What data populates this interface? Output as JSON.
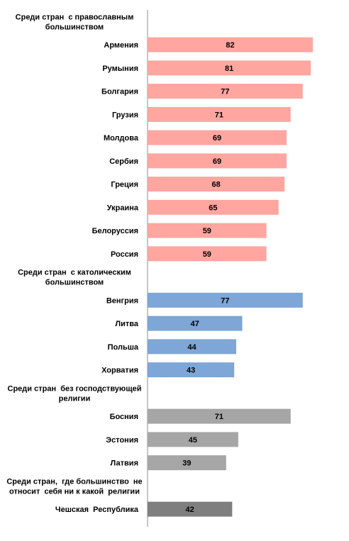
{
  "chart_data": {
    "type": "bar",
    "orientation": "horizontal",
    "xlim": [
      0,
      90
    ],
    "grid": false,
    "legend": "none",
    "colors": {
      "orthodox": "#ffa6a0",
      "catholic": "#7ea6d6",
      "no_dominant": "#a6a6a6",
      "unaffiliated": "#7f7f7f"
    },
    "rows": [
      {
        "kind": "group",
        "lines": [
          "Среди стран  с православным",
          "большинством"
        ]
      },
      {
        "kind": "bar",
        "label": "Армения",
        "value": 82,
        "group": "orthodox"
      },
      {
        "kind": "bar",
        "label": "Румыния",
        "value": 81,
        "group": "orthodox"
      },
      {
        "kind": "bar",
        "label": "Болгария",
        "value": 77,
        "group": "orthodox"
      },
      {
        "kind": "bar",
        "label": "Грузия",
        "value": 71,
        "group": "orthodox"
      },
      {
        "kind": "bar",
        "label": "Молдова",
        "value": 69,
        "group": "orthodox"
      },
      {
        "kind": "bar",
        "label": "Сербия",
        "value": 69,
        "group": "orthodox"
      },
      {
        "kind": "bar",
        "label": "Греция",
        "value": 68,
        "group": "orthodox"
      },
      {
        "kind": "bar",
        "label": "Украина",
        "value": 65,
        "group": "orthodox"
      },
      {
        "kind": "bar",
        "label": "Белоруссия",
        "value": 59,
        "group": "orthodox"
      },
      {
        "kind": "bar",
        "label": "Россия",
        "value": 59,
        "group": "orthodox"
      },
      {
        "kind": "group",
        "lines": [
          "Среди стран  с католическим",
          "большинством"
        ]
      },
      {
        "kind": "bar",
        "label": "Венгрия",
        "value": 77,
        "group": "catholic"
      },
      {
        "kind": "bar",
        "label": "Литва",
        "value": 47,
        "group": "catholic"
      },
      {
        "kind": "bar",
        "label": "Польша",
        "value": 44,
        "group": "catholic"
      },
      {
        "kind": "bar",
        "label": "Хорватия",
        "value": 43,
        "group": "catholic"
      },
      {
        "kind": "group",
        "lines": [
          "Среди стран  без господствующей",
          "религии"
        ]
      },
      {
        "kind": "bar",
        "label": "Босния",
        "value": 71,
        "group": "no_dominant"
      },
      {
        "kind": "bar",
        "label": "Эстония",
        "value": 45,
        "group": "no_dominant"
      },
      {
        "kind": "bar",
        "label": "Латвия",
        "value": 39,
        "group": "no_dominant"
      },
      {
        "kind": "group",
        "lines": [
          "Среди стран,  где большинство  не",
          "относит  себя ни к какой  религии"
        ]
      },
      {
        "kind": "bar",
        "label": "Чешская  Республика",
        "value": 42,
        "group": "unaffiliated"
      }
    ]
  }
}
